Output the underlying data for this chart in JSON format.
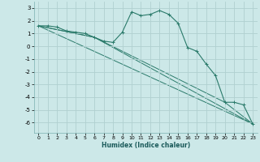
{
  "xlabel": "Humidex (Indice chaleur)",
  "bg_color": "#cce8e8",
  "grid_color": "#b0d0d0",
  "line_color": "#2a7a6a",
  "xlim": [
    -0.5,
    23.5
  ],
  "ylim": [
    -6.8,
    3.5
  ],
  "yticks": [
    -6,
    -5,
    -4,
    -3,
    -2,
    -1,
    0,
    1,
    2,
    3
  ],
  "xticks": [
    0,
    1,
    2,
    3,
    4,
    5,
    6,
    7,
    8,
    9,
    10,
    11,
    12,
    13,
    14,
    15,
    16,
    17,
    18,
    19,
    20,
    21,
    22,
    23
  ],
  "series_main": {
    "x": [
      0,
      1,
      2,
      3,
      4,
      5,
      6,
      7,
      8,
      9,
      10,
      11,
      12,
      13,
      14,
      15,
      16,
      17,
      18,
      19,
      20,
      21,
      22,
      23
    ],
    "y": [
      1.6,
      1.6,
      1.5,
      1.2,
      1.1,
      1.0,
      0.7,
      0.4,
      0.3,
      1.1,
      2.7,
      2.4,
      2.5,
      2.8,
      2.5,
      1.8,
      -0.1,
      -0.4,
      -1.4,
      -2.3,
      -4.4,
      -4.4,
      -4.6,
      -6.1
    ]
  },
  "series_lines": [
    {
      "x": [
        0,
        23
      ],
      "y": [
        1.6,
        -6.1
      ]
    },
    {
      "x": [
        0,
        6,
        20,
        23
      ],
      "y": [
        1.6,
        0.7,
        -4.4,
        -6.1
      ]
    },
    {
      "x": [
        0,
        6,
        23
      ],
      "y": [
        1.6,
        0.7,
        -6.1
      ]
    }
  ]
}
